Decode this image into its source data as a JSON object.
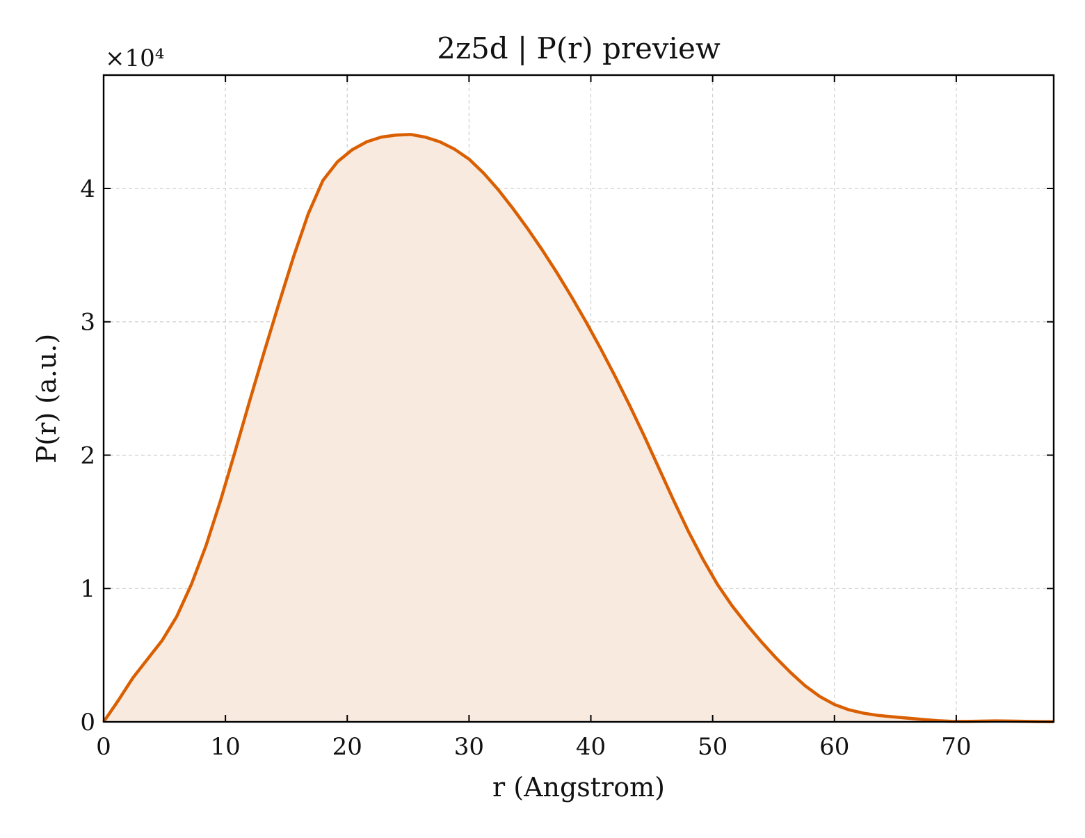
{
  "chart_data": {
    "type": "area",
    "title": "2z5d | P(r) preview",
    "xlabel": "r (Angstrom)",
    "ylabel": "P(r) (a.u.)",
    "y_multiplier_label": "×10⁴",
    "xlim": [
      0,
      78
    ],
    "ylim": [
      0,
      48500
    ],
    "x_ticks": [
      0,
      10,
      20,
      30,
      40,
      50,
      60,
      70
    ],
    "x_tick_labels": [
      "0",
      "10",
      "20",
      "30",
      "40",
      "50",
      "60",
      "70"
    ],
    "y_ticks": [
      0,
      10000,
      20000,
      30000,
      40000
    ],
    "y_tick_labels": [
      "0",
      "1",
      "2",
      "3",
      "4"
    ],
    "grid": true,
    "line_color": "#d95f02",
    "fill_color": "#f9eadf",
    "series": [
      {
        "x": [
          0,
          1.2,
          2.4,
          3.6,
          4.8,
          6.0,
          7.2,
          8.4,
          9.6,
          10.8,
          12.0,
          13.2,
          14.4,
          15.6,
          16.8,
          18.0,
          19.2,
          20.4,
          21.6,
          22.8,
          24.0,
          25.2,
          26.4,
          27.6,
          28.8,
          30.0,
          31.2,
          32.4,
          33.6,
          34.8,
          36.0,
          37.2,
          38.4,
          39.6,
          40.8,
          42.0,
          43.2,
          44.4,
          45.6,
          46.8,
          48.0,
          49.2,
          50.4,
          51.6,
          52.8,
          54.0,
          55.2,
          56.4,
          57.6,
          58.8,
          60.0,
          61.2,
          62.4,
          63.6,
          64.8,
          66.0,
          67.2,
          68.4,
          69.6,
          70.8,
          72.0,
          73.2,
          74.4,
          75.6,
          76.8,
          78.0
        ],
        "values": [
          0,
          1600,
          3300,
          4700,
          6100,
          7900,
          10300,
          13200,
          16600,
          20300,
          24100,
          27800,
          31400,
          34900,
          38100,
          40600,
          42000,
          42900,
          43500,
          43850,
          44000,
          44050,
          43850,
          43500,
          42950,
          42200,
          41150,
          39900,
          38500,
          37000,
          35400,
          33700,
          31900,
          30000,
          28000,
          25900,
          23700,
          21400,
          19000,
          16600,
          14300,
          12200,
          10300,
          8700,
          7300,
          6000,
          4800,
          3700,
          2700,
          1900,
          1300,
          900,
          650,
          480,
          380,
          280,
          180,
          90,
          40,
          30,
          50,
          70,
          60,
          40,
          20,
          10
        ]
      }
    ]
  }
}
